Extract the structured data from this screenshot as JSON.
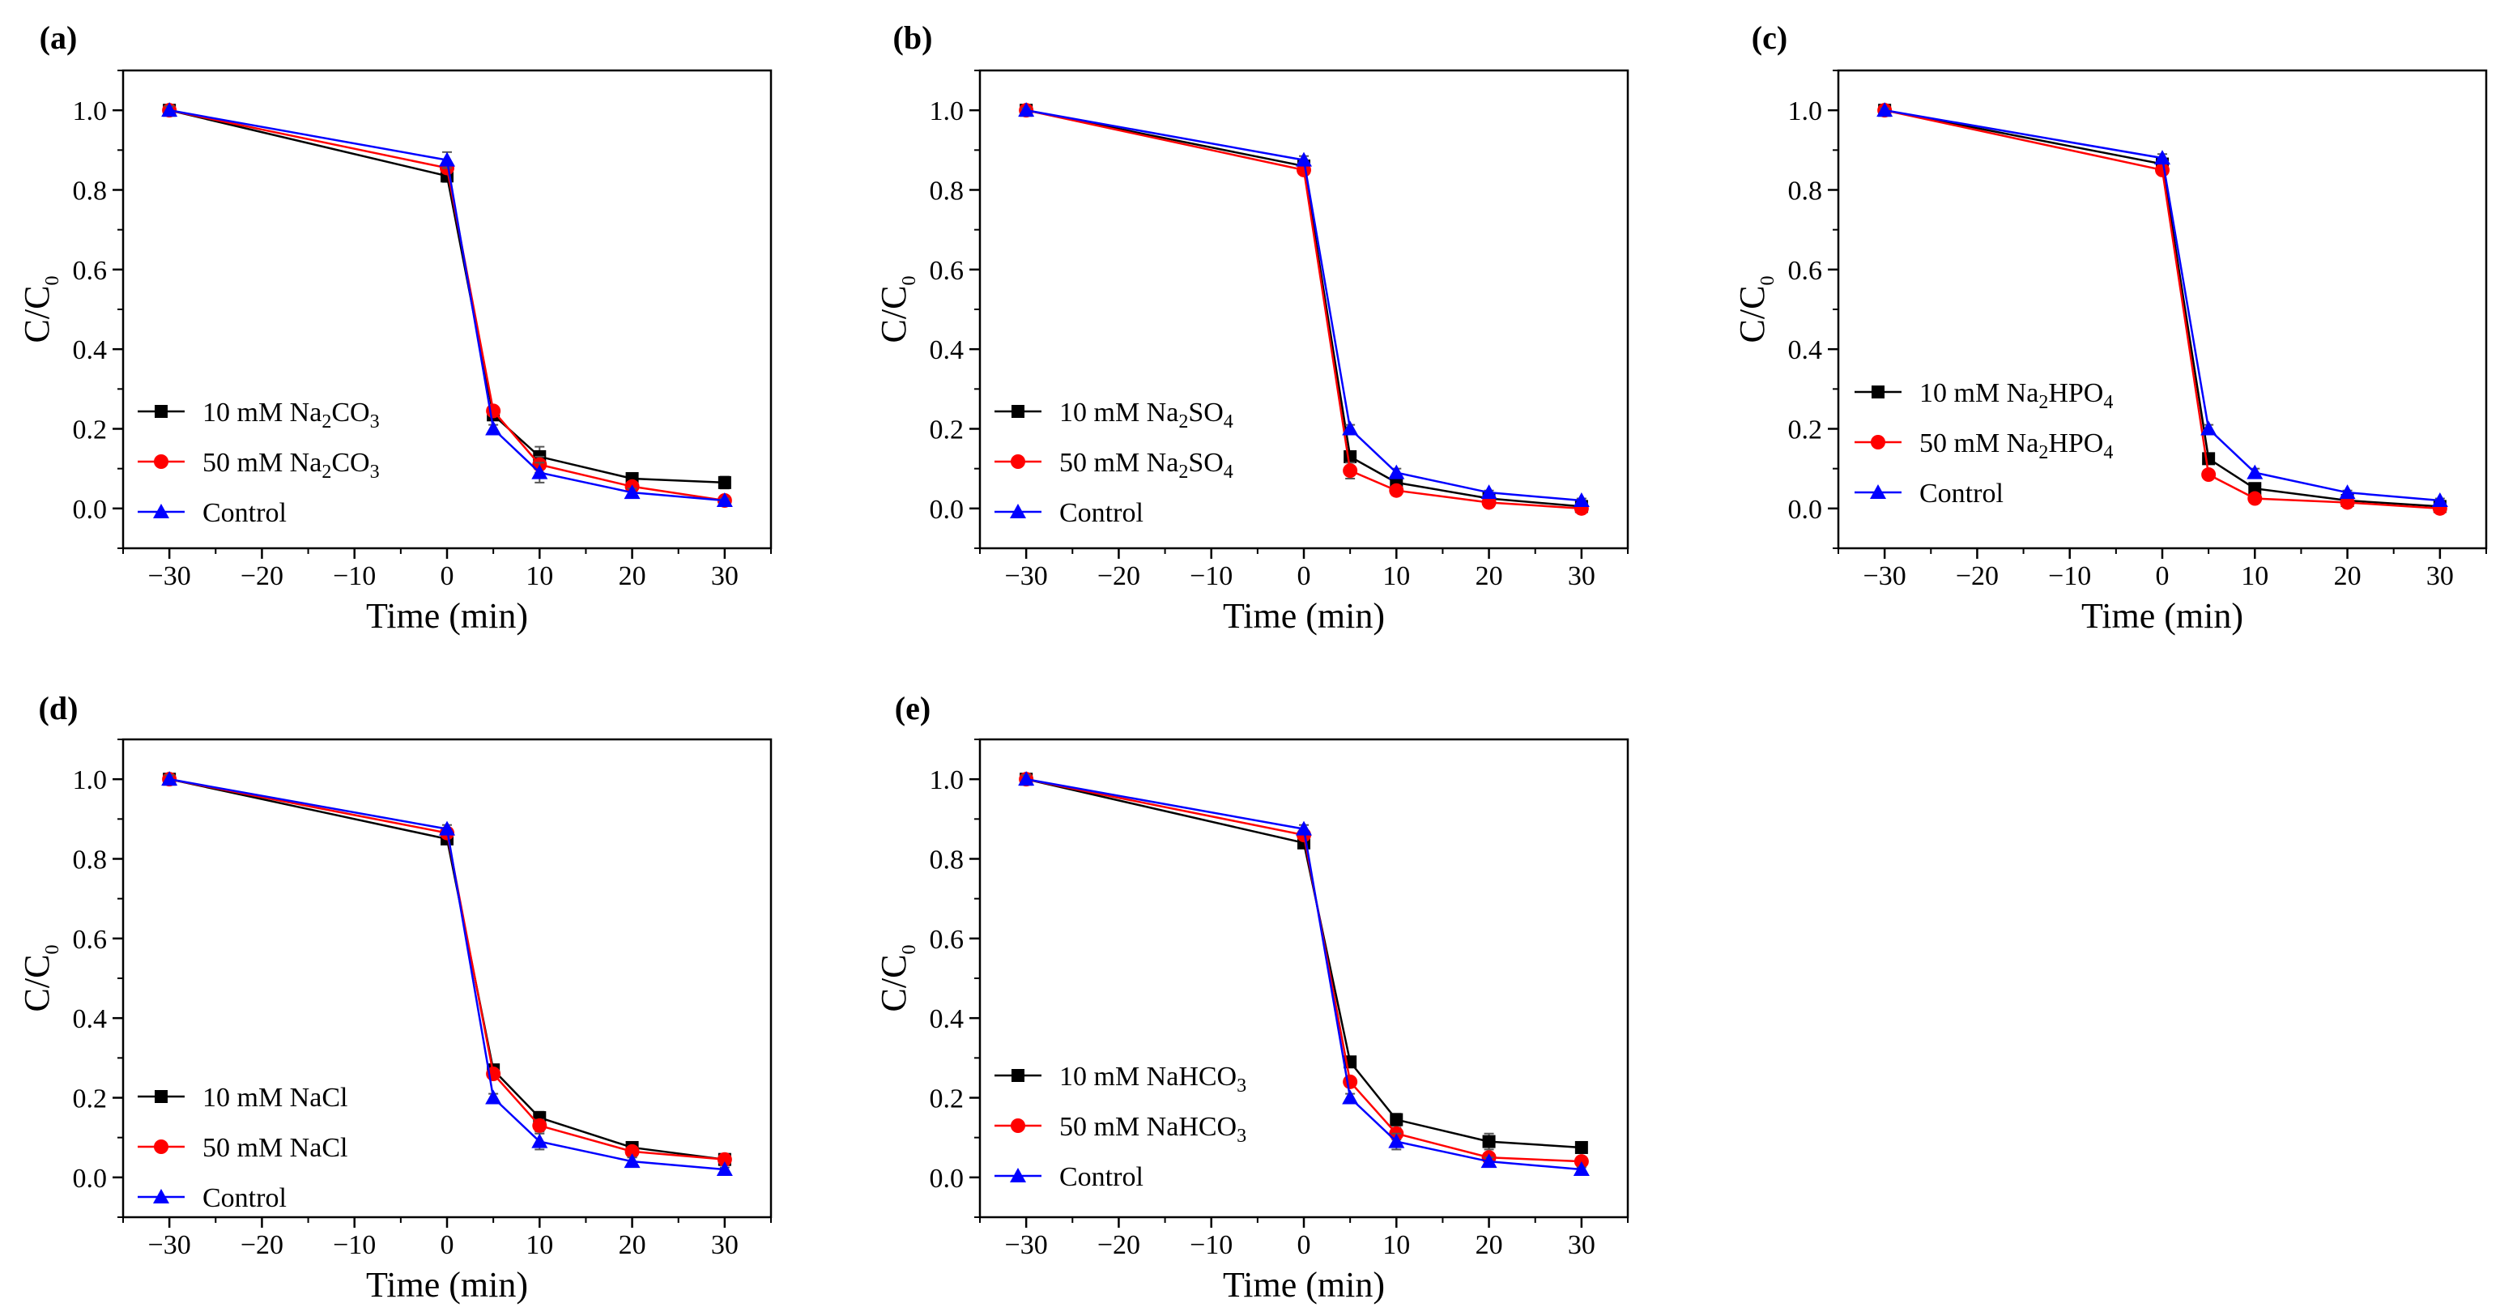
{
  "figure": {
    "title": ""
  },
  "colors": {
    "series_10mM": "#000000",
    "series_50mM": "#ff0000",
    "series_control": "#0000ff",
    "axis": "#000000"
  },
  "chart_data": [
    {
      "type": "line",
      "panel": "(a)",
      "xlabel": "Time (min)",
      "ylabel": "C/C0",
      "ylabel_main": "C/C",
      "ylabel_sub": "0",
      "xlim": [
        -35,
        35
      ],
      "ylim": [
        -0.1,
        1.1
      ],
      "xticks": [
        -30,
        -20,
        -10,
        0,
        10,
        20,
        30
      ],
      "xtick_labels": [
        "−30",
        "−20",
        "−10",
        "0",
        "10",
        "20",
        "30"
      ],
      "yticks": [
        0.0,
        0.2,
        0.4,
        0.6,
        0.8,
        1.0
      ],
      "ytick_labels": [
        "0.0",
        "0.2",
        "0.4",
        "0.6",
        "0.8",
        "1.0"
      ],
      "legend_position": "bottom-left",
      "x": [
        -30,
        0,
        5,
        10,
        20,
        30
      ],
      "series": [
        {
          "name": "10 mM Na2CO3",
          "label": [
            {
              "t": "10 mM Na"
            },
            {
              "t": "2",
              "sub": true
            },
            {
              "t": "CO"
            },
            {
              "t": "3",
              "sub": true
            }
          ],
          "color": "#000000",
          "marker": "square",
          "values": [
            1.0,
            0.835,
            0.235,
            0.13,
            0.075,
            0.065
          ],
          "errors": [
            0.01,
            0.015,
            0.01,
            0.025,
            0.01,
            0.015
          ]
        },
        {
          "name": "50 mM Na2CO3",
          "label": [
            {
              "t": "50 mM Na"
            },
            {
              "t": "2",
              "sub": true
            },
            {
              "t": "CO"
            },
            {
              "t": "3",
              "sub": true
            }
          ],
          "color": "#ff0000",
          "marker": "circle",
          "values": [
            1.0,
            0.855,
            0.245,
            0.11,
            0.055,
            0.02
          ],
          "errors": [
            0.0,
            0.01,
            0.01,
            0.02,
            0.01,
            0.01
          ]
        },
        {
          "name": "Control",
          "label": [
            {
              "t": "Control"
            }
          ],
          "color": "#0000ff",
          "marker": "triangle",
          "values": [
            1.0,
            0.875,
            0.2,
            0.09,
            0.04,
            0.02
          ],
          "errors": [
            0.01,
            0.02,
            0.01,
            0.025,
            0.01,
            0.005
          ]
        }
      ]
    },
    {
      "type": "line",
      "panel": "(b)",
      "xlabel": "Time (min)",
      "ylabel": "C/C0",
      "ylabel_main": "C/C",
      "ylabel_sub": "0",
      "xlim": [
        -35,
        35
      ],
      "ylim": [
        -0.1,
        1.1
      ],
      "xticks": [
        -30,
        -20,
        -10,
        0,
        10,
        20,
        30
      ],
      "xtick_labels": [
        "−30",
        "−20",
        "−10",
        "0",
        "10",
        "20",
        "30"
      ],
      "yticks": [
        0.0,
        0.2,
        0.4,
        0.6,
        0.8,
        1.0
      ],
      "ytick_labels": [
        "0.0",
        "0.2",
        "0.4",
        "0.6",
        "0.8",
        "1.0"
      ],
      "legend_position": "bottom-left",
      "x": [
        -30,
        0,
        5,
        10,
        20,
        30
      ],
      "series": [
        {
          "name": "10 mM Na2SO4",
          "label": [
            {
              "t": "10 mM Na"
            },
            {
              "t": "2",
              "sub": true
            },
            {
              "t": "SO"
            },
            {
              "t": "4",
              "sub": true
            }
          ],
          "color": "#000000",
          "marker": "square",
          "values": [
            1.0,
            0.86,
            0.13,
            0.065,
            0.025,
            0.005
          ],
          "errors": [
            0.005,
            0.01,
            0.01,
            0.01,
            0.005,
            0.005
          ]
        },
        {
          "name": "50 mM Na2SO4",
          "label": [
            {
              "t": "50 mM Na"
            },
            {
              "t": "2",
              "sub": true
            },
            {
              "t": "SO"
            },
            {
              "t": "4",
              "sub": true
            }
          ],
          "color": "#ff0000",
          "marker": "circle",
          "values": [
            1.0,
            0.85,
            0.095,
            0.045,
            0.015,
            0.0
          ],
          "errors": [
            0.0,
            0.01,
            0.02,
            0.01,
            0.005,
            0.005
          ]
        },
        {
          "name": "Control",
          "label": [
            {
              "t": "Control"
            }
          ],
          "color": "#0000ff",
          "marker": "triangle",
          "values": [
            1.0,
            0.875,
            0.2,
            0.09,
            0.04,
            0.02
          ],
          "errors": [
            0.005,
            0.01,
            0.01,
            0.01,
            0.005,
            0.005
          ]
        }
      ]
    },
    {
      "type": "line",
      "panel": "(c)",
      "xlabel": "Time (min)",
      "ylabel": "C/C0",
      "ylabel_main": "C/C",
      "ylabel_sub": "0",
      "xlim": [
        -35,
        35
      ],
      "ylim": [
        -0.1,
        1.1
      ],
      "xticks": [
        -30,
        -20,
        -10,
        0,
        10,
        20,
        30
      ],
      "xtick_labels": [
        "−30",
        "−20",
        "−10",
        "0",
        "10",
        "20",
        "30"
      ],
      "yticks": [
        0.0,
        0.2,
        0.4,
        0.6,
        0.8,
        1.0
      ],
      "ytick_labels": [
        "0.0",
        "0.2",
        "0.4",
        "0.6",
        "0.8",
        "1.0"
      ],
      "legend_position": "center-left",
      "x": [
        -30,
        0,
        5,
        10,
        20,
        30
      ],
      "series": [
        {
          "name": "10 mM Na2HPO4",
          "label": [
            {
              "t": "10 mM Na"
            },
            {
              "t": "2",
              "sub": true
            },
            {
              "t": "HPO"
            },
            {
              "t": "4",
              "sub": true
            }
          ],
          "color": "#000000",
          "marker": "square",
          "values": [
            1.0,
            0.865,
            0.125,
            0.05,
            0.02,
            0.005
          ],
          "errors": [
            0.005,
            0.01,
            0.01,
            0.01,
            0.005,
            0.005
          ]
        },
        {
          "name": "50 mM Na2HPO4",
          "label": [
            {
              "t": "50 mM Na"
            },
            {
              "t": "2",
              "sub": true
            },
            {
              "t": "HPO"
            },
            {
              "t": "4",
              "sub": true
            }
          ],
          "color": "#ff0000",
          "marker": "circle",
          "values": [
            1.0,
            0.85,
            0.085,
            0.025,
            0.015,
            0.0
          ],
          "errors": [
            0.0,
            0.01,
            0.01,
            0.005,
            0.005,
            0.005
          ]
        },
        {
          "name": "Control",
          "label": [
            {
              "t": "Control"
            }
          ],
          "color": "#0000ff",
          "marker": "triangle",
          "values": [
            1.0,
            0.88,
            0.2,
            0.09,
            0.04,
            0.02
          ],
          "errors": [
            0.005,
            0.01,
            0.01,
            0.01,
            0.005,
            0.005
          ]
        }
      ]
    },
    {
      "type": "line",
      "panel": "(d)",
      "xlabel": "Time (min)",
      "ylabel": "C/C0",
      "ylabel_main": "C/C",
      "ylabel_sub": "0",
      "xlim": [
        -35,
        35
      ],
      "ylim": [
        -0.1,
        1.1
      ],
      "xticks": [
        -30,
        -20,
        -10,
        0,
        10,
        20,
        30
      ],
      "xtick_labels": [
        "−30",
        "−20",
        "−10",
        "0",
        "10",
        "20",
        "30"
      ],
      "yticks": [
        0.0,
        0.2,
        0.4,
        0.6,
        0.8,
        1.0
      ],
      "ytick_labels": [
        "0.0",
        "0.2",
        "0.4",
        "0.6",
        "0.8",
        "1.0"
      ],
      "legend_position": "bottom-left",
      "x": [
        -30,
        0,
        5,
        10,
        20,
        30
      ],
      "series": [
        {
          "name": "10 mM NaCl",
          "label": [
            {
              "t": "10 mM NaCl"
            }
          ],
          "color": "#000000",
          "marker": "square",
          "values": [
            1.0,
            0.85,
            0.27,
            0.15,
            0.075,
            0.045
          ],
          "errors": [
            0.01,
            0.01,
            0.01,
            0.015,
            0.01,
            0.005
          ]
        },
        {
          "name": "50 mM NaCl",
          "label": [
            {
              "t": "50 mM NaCl"
            }
          ],
          "color": "#ff0000",
          "marker": "circle",
          "values": [
            1.0,
            0.865,
            0.26,
            0.13,
            0.065,
            0.045
          ],
          "errors": [
            0.0,
            0.01,
            0.01,
            0.015,
            0.01,
            0.005
          ]
        },
        {
          "name": "Control",
          "label": [
            {
              "t": "Control"
            }
          ],
          "color": "#0000ff",
          "marker": "triangle",
          "values": [
            1.0,
            0.875,
            0.2,
            0.09,
            0.04,
            0.02
          ],
          "errors": [
            0.01,
            0.01,
            0.01,
            0.02,
            0.01,
            0.005
          ]
        }
      ]
    },
    {
      "type": "line",
      "panel": "(e)",
      "xlabel": "Time (min)",
      "ylabel": "C/C0",
      "ylabel_main": "C/C",
      "ylabel_sub": "0",
      "xlim": [
        -35,
        35
      ],
      "ylim": [
        -0.1,
        1.1
      ],
      "xticks": [
        -30,
        -20,
        -10,
        0,
        10,
        20,
        30
      ],
      "xtick_labels": [
        "−30",
        "−20",
        "−10",
        "0",
        "10",
        "20",
        "30"
      ],
      "yticks": [
        0.0,
        0.2,
        0.4,
        0.6,
        0.8,
        1.0
      ],
      "ytick_labels": [
        "0.0",
        "0.2",
        "0.4",
        "0.6",
        "0.8",
        "1.0"
      ],
      "legend_position": "bottom-left",
      "x": [
        -30,
        0,
        5,
        10,
        20,
        30
      ],
      "series": [
        {
          "name": "10 mM NaHCO3",
          "label": [
            {
              "t": "10 mM NaHCO"
            },
            {
              "t": "3",
              "sub": true
            }
          ],
          "color": "#000000",
          "marker": "square",
          "values": [
            1.0,
            0.84,
            0.29,
            0.145,
            0.09,
            0.075
          ],
          "errors": [
            0.01,
            0.01,
            0.01,
            0.015,
            0.02,
            0.01
          ]
        },
        {
          "name": "50 mM NaHCO3",
          "label": [
            {
              "t": "50 mM NaHCO"
            },
            {
              "t": "3",
              "sub": true
            }
          ],
          "color": "#ff0000",
          "marker": "circle",
          "values": [
            1.0,
            0.86,
            0.24,
            0.11,
            0.05,
            0.04
          ],
          "errors": [
            0.0,
            0.01,
            0.01,
            0.015,
            0.01,
            0.005
          ]
        },
        {
          "name": "Control",
          "label": [
            {
              "t": "Control"
            }
          ],
          "color": "#0000ff",
          "marker": "triangle",
          "values": [
            1.0,
            0.875,
            0.2,
            0.09,
            0.04,
            0.02
          ],
          "errors": [
            0.01,
            0.01,
            0.01,
            0.02,
            0.01,
            0.005
          ]
        }
      ]
    }
  ]
}
